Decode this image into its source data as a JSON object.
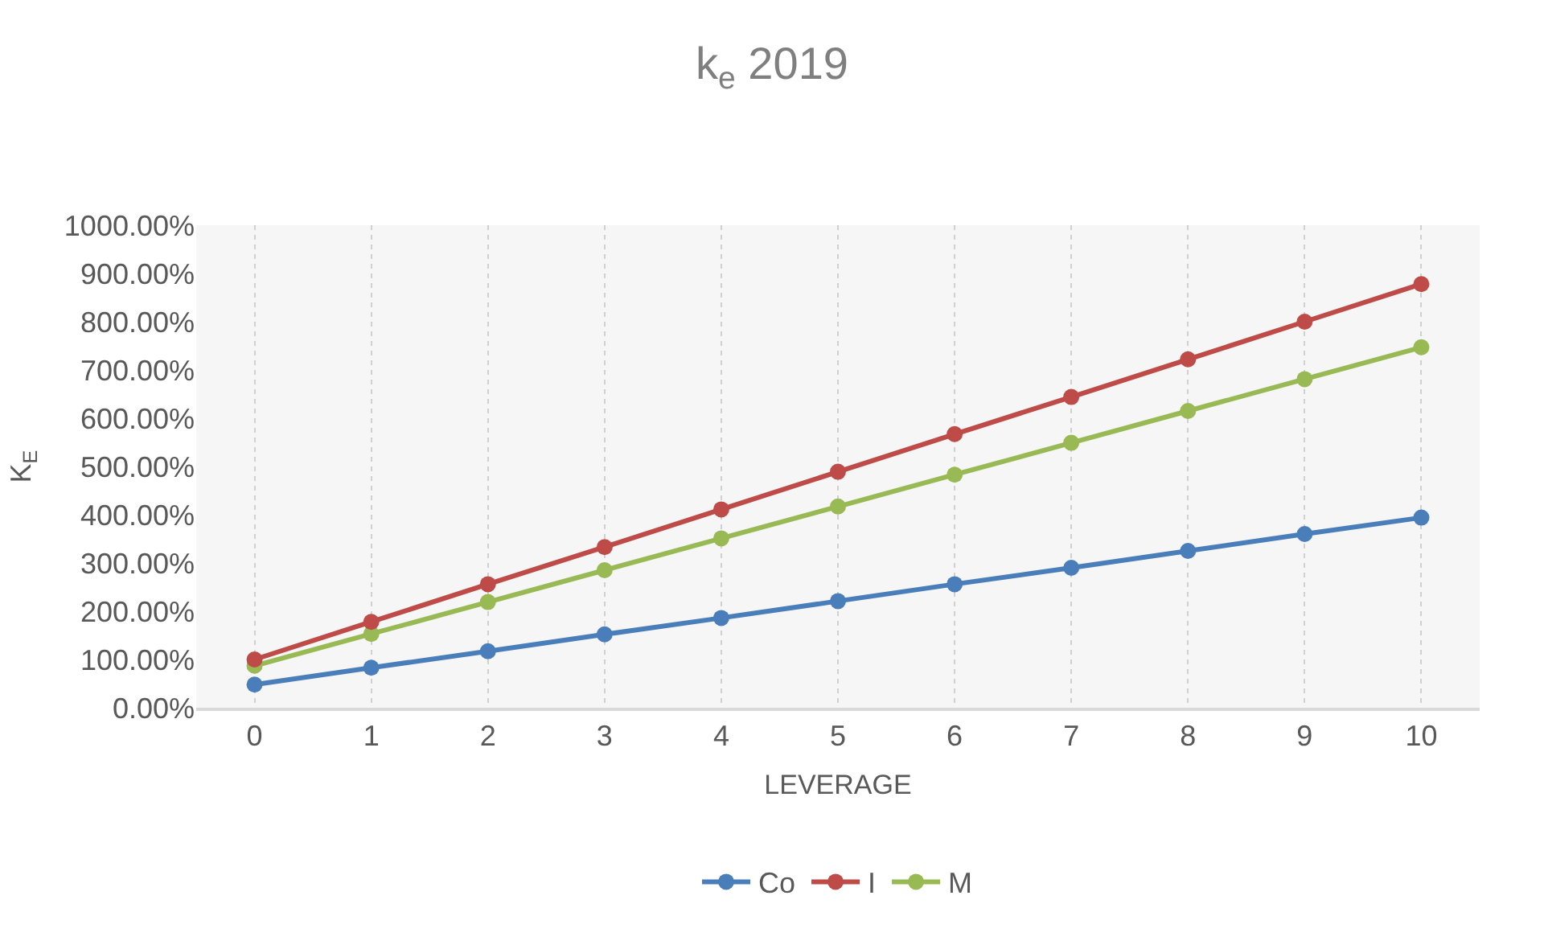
{
  "chart_data": {
    "type": "line",
    "title": "k$_{e}$ 2019",
    "xlabel": "LEVERAGE",
    "ylabel": "K$_{E}$",
    "categories": [
      "0",
      "1",
      "2",
      "3",
      "4",
      "5",
      "6",
      "7",
      "8",
      "9",
      "10"
    ],
    "series": [
      {
        "name": "Co",
        "color": "#4a7ebb",
        "values": [
          48,
          83,
          117,
          152,
          186,
          221,
          256,
          290,
          325,
          360,
          394
        ]
      },
      {
        "name": "I",
        "color": "#be4b48",
        "values": [
          100,
          178,
          256,
          333,
          411,
          489,
          567,
          644,
          722,
          800,
          878
        ]
      },
      {
        "name": "M",
        "color": "#98b954",
        "values": [
          87,
          153,
          219,
          285,
          351,
          417,
          483,
          549,
          615,
          681,
          747
        ]
      }
    ],
    "ylim": [
      0,
      1000
    ],
    "yticks": [
      {
        "value": 0,
        "label": "0.00%"
      },
      {
        "value": 100,
        "label": "100.00%"
      },
      {
        "value": 200,
        "label": "200.00%"
      },
      {
        "value": 300,
        "label": "300.00%"
      },
      {
        "value": 400,
        "label": "400.00%"
      },
      {
        "value": 500,
        "label": "500.00%"
      },
      {
        "value": 600,
        "label": "600.00%"
      },
      {
        "value": 700,
        "label": "700.00%"
      },
      {
        "value": 800,
        "label": "800.00%"
      },
      {
        "value": 900,
        "label": "900.00%"
      },
      {
        "value": 1000,
        "label": "1000.00%"
      }
    ],
    "grid": "x",
    "legend": "bottom",
    "marker": "circle",
    "line_style": "solid"
  }
}
